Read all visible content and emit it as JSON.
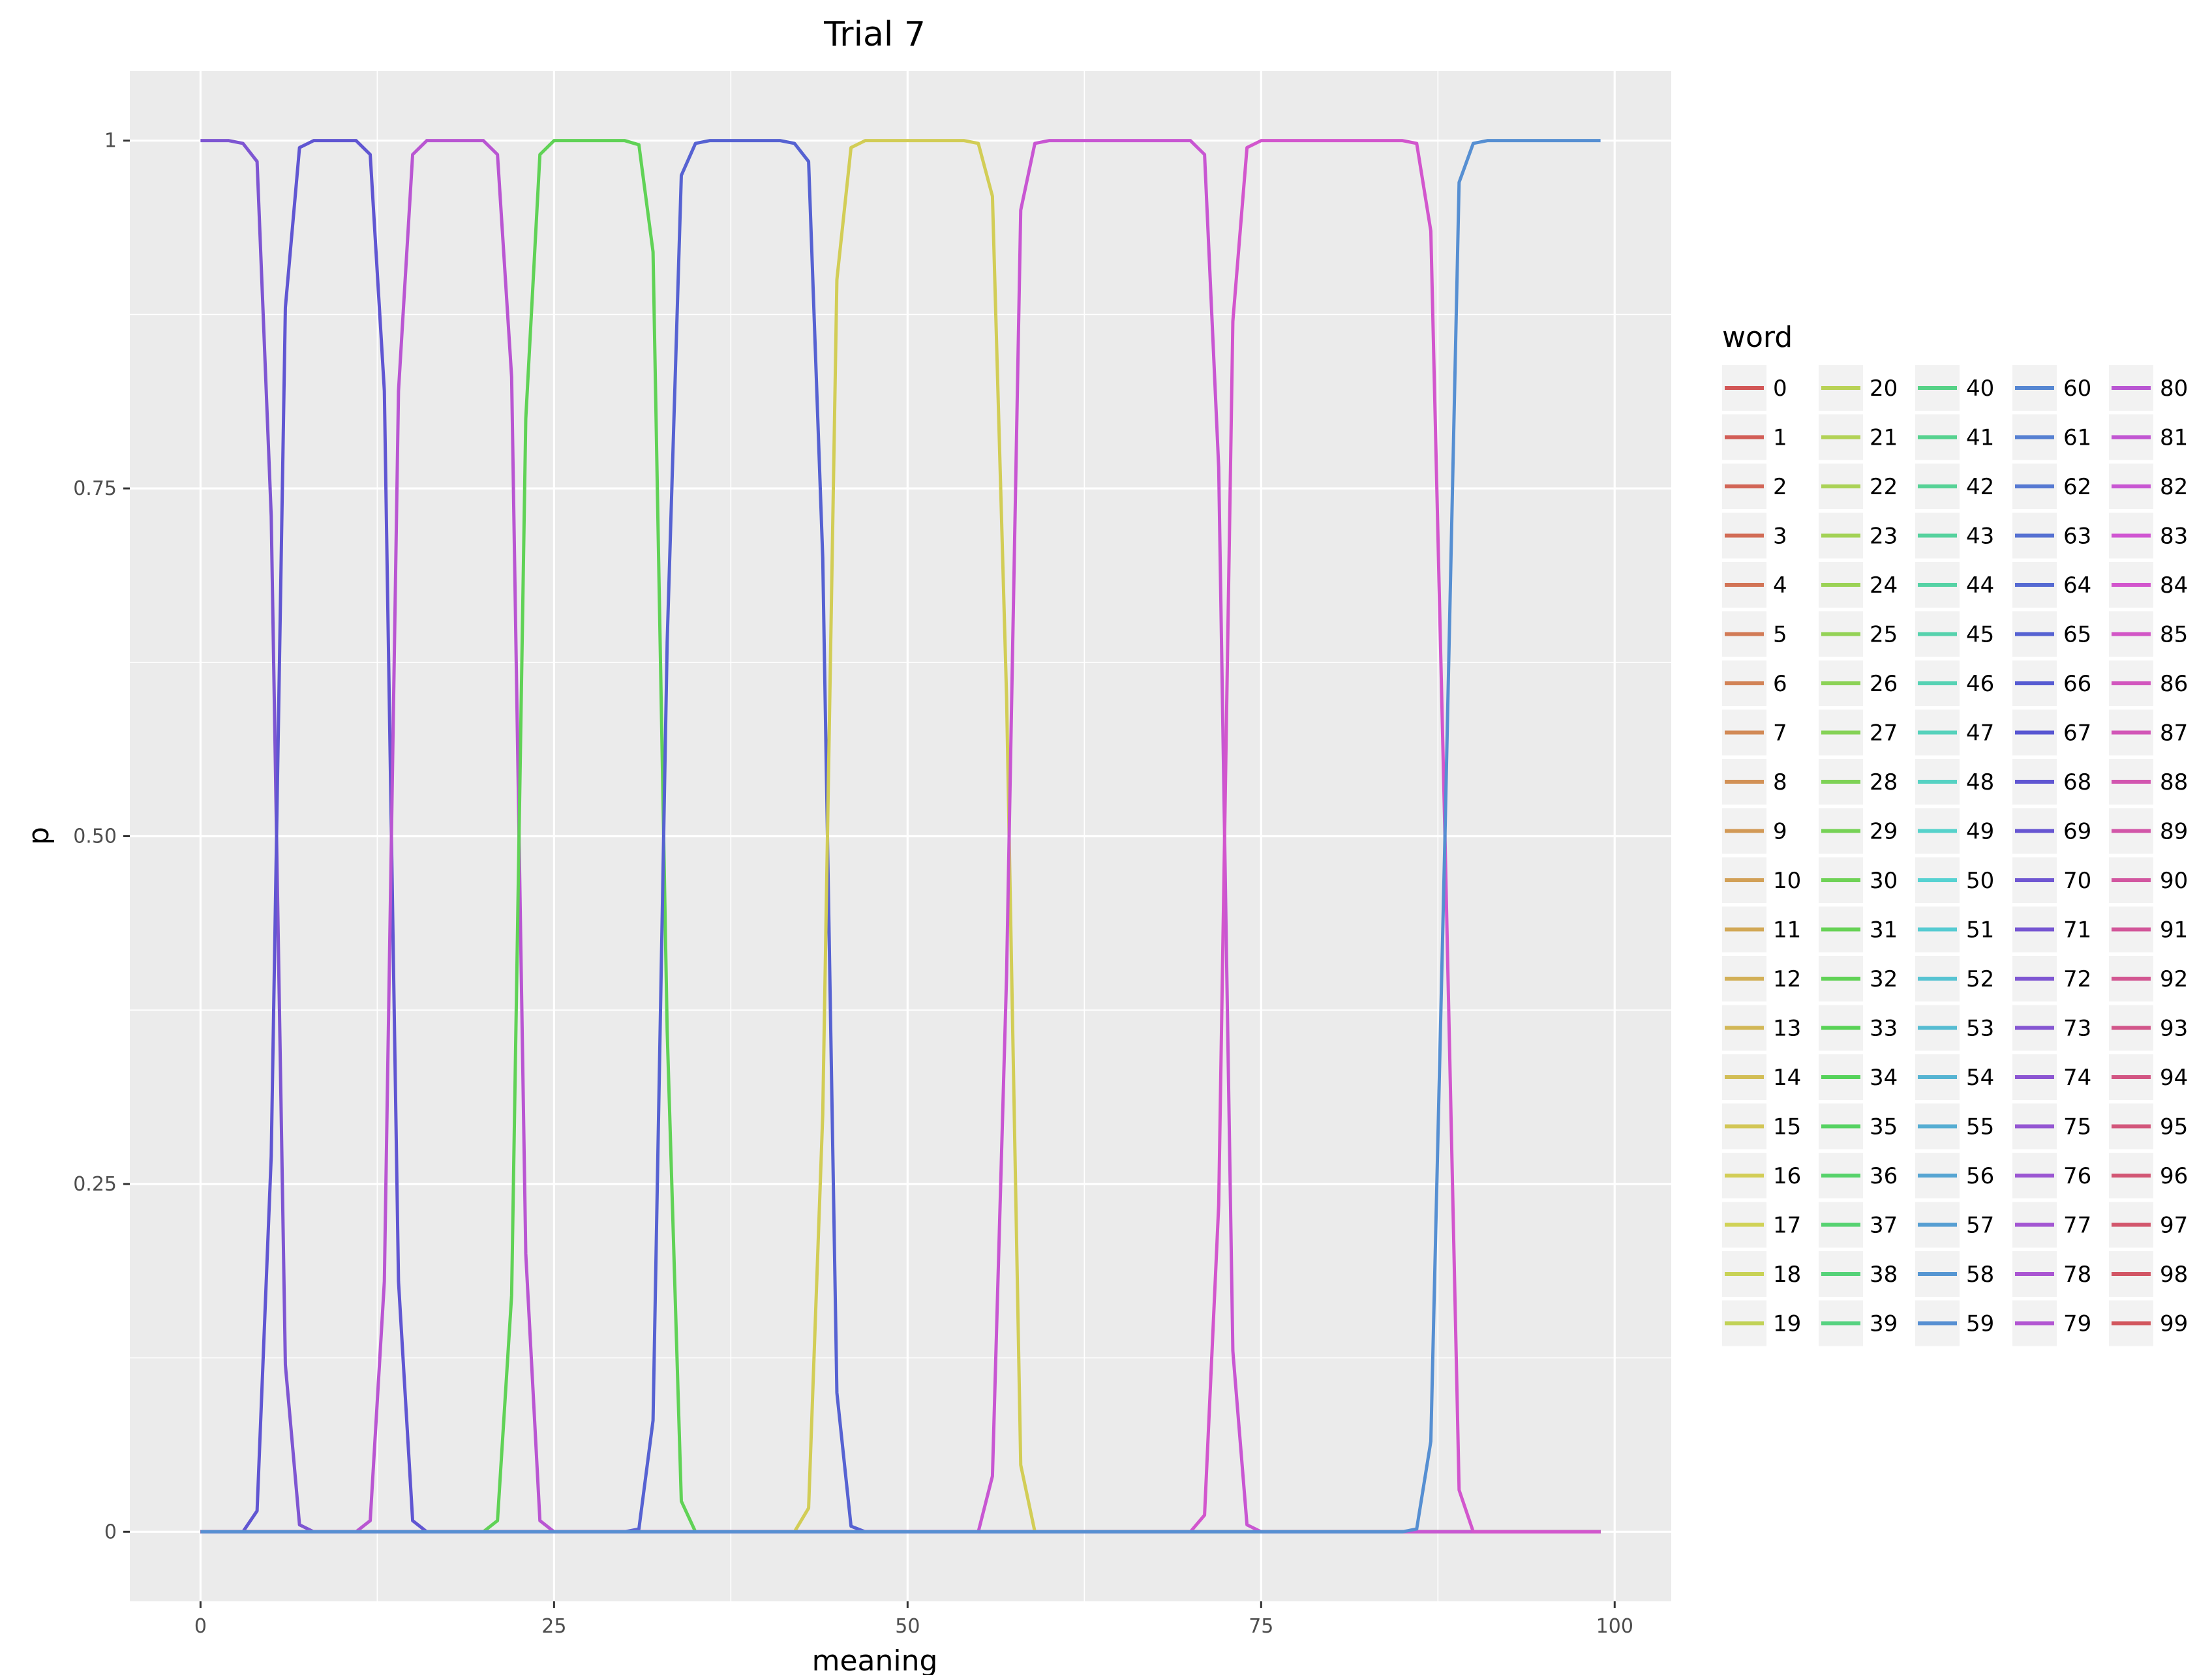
{
  "chart_data": {
    "type": "line",
    "title": "Trial 7",
    "xlabel": "meaning",
    "ylabel": "p",
    "xlim": [
      -5,
      104
    ],
    "ylim": [
      -0.05,
      1.05
    ],
    "x_ticks": [
      0,
      25,
      50,
      75,
      100
    ],
    "x_tick_labels": [
      "0",
      "25",
      "50",
      "75",
      "100"
    ],
    "y_ticks": [
      0,
      0.25,
      0.5,
      0.75,
      1
    ],
    "y_tick_labels": [
      "0",
      "0.25",
      "0.50",
      "0.75",
      "1"
    ],
    "x_minor": [
      12.5,
      37.5,
      62.5,
      87.5
    ],
    "y_minor": [
      0.125,
      0.375,
      0.625,
      0.875
    ],
    "grid": true,
    "legend": {
      "title": "word",
      "placement": "right",
      "columns": 5,
      "labels": [
        "0",
        "1",
        "2",
        "3",
        "4",
        "5",
        "6",
        "7",
        "8",
        "9",
        "10",
        "11",
        "12",
        "13",
        "14",
        "15",
        "16",
        "17",
        "18",
        "19",
        "20",
        "21",
        "22",
        "23",
        "24",
        "25",
        "26",
        "27",
        "28",
        "29",
        "30",
        "31",
        "32",
        "33",
        "34",
        "35",
        "36",
        "37",
        "38",
        "39",
        "40",
        "41",
        "42",
        "43",
        "44",
        "45",
        "46",
        "47",
        "48",
        "49",
        "50",
        "51",
        "52",
        "53",
        "54",
        "55",
        "56",
        "57",
        "58",
        "59",
        "60",
        "61",
        "62",
        "63",
        "64",
        "65",
        "66",
        "67",
        "68",
        "69",
        "70",
        "71",
        "72",
        "73",
        "74",
        "75",
        "76",
        "77",
        "78",
        "79",
        "80",
        "81",
        "82",
        "83",
        "84",
        "85",
        "86",
        "87",
        "88",
        "89",
        "90",
        "91",
        "92",
        "93",
        "94",
        "95",
        "96",
        "97",
        "98",
        "99"
      ]
    },
    "meaning_range": [
      0,
      99
    ],
    "active_series": [
      {
        "word": "72",
        "points": [
          [
            0,
            1
          ],
          [
            1,
            1
          ],
          [
            2,
            1
          ],
          [
            3,
            0.998
          ],
          [
            4,
            0.985
          ],
          [
            5,
            0.73
          ],
          [
            6,
            0.12
          ],
          [
            7,
            0.005
          ],
          [
            8,
            0
          ]
        ]
      },
      {
        "word": "68",
        "points": [
          [
            2,
            0
          ],
          [
            3,
            0
          ],
          [
            4,
            0.015
          ],
          [
            5,
            0.27
          ],
          [
            6,
            0.88
          ],
          [
            7,
            0.995
          ],
          [
            8,
            1
          ],
          [
            9,
            1
          ],
          [
            10,
            1
          ],
          [
            11,
            1
          ],
          [
            12,
            0.99
          ],
          [
            13,
            0.82
          ],
          [
            14,
            0.18
          ],
          [
            15,
            0.008
          ],
          [
            16,
            0
          ]
        ]
      },
      {
        "word": "80",
        "points": [
          [
            10,
            0
          ],
          [
            11,
            0
          ],
          [
            12,
            0.008
          ],
          [
            13,
            0.18
          ],
          [
            14,
            0.82
          ],
          [
            15,
            0.99
          ],
          [
            16,
            1
          ],
          [
            17,
            1
          ],
          [
            18,
            1
          ],
          [
            19,
            1
          ],
          [
            20,
            1
          ],
          [
            21,
            0.99
          ],
          [
            22,
            0.83
          ],
          [
            23,
            0.2
          ],
          [
            24,
            0.008
          ],
          [
            25,
            0
          ]
        ]
      },
      {
        "word": "32",
        "points": [
          [
            19,
            0
          ],
          [
            20,
            0
          ],
          [
            21,
            0.008
          ],
          [
            22,
            0.17
          ],
          [
            23,
            0.8
          ],
          [
            24,
            0.99
          ],
          [
            25,
            1
          ],
          [
            26,
            1
          ],
          [
            27,
            1
          ],
          [
            28,
            1
          ],
          [
            29,
            1
          ],
          [
            30,
            1
          ],
          [
            31,
            0.997
          ],
          [
            32,
            0.92
          ],
          [
            33,
            0.36
          ],
          [
            34,
            0.022
          ],
          [
            35,
            0
          ]
        ]
      },
      {
        "word": "65",
        "points": [
          [
            30,
            0
          ],
          [
            31,
            0.002
          ],
          [
            32,
            0.08
          ],
          [
            33,
            0.64
          ],
          [
            34,
            0.975
          ],
          [
            35,
            0.998
          ],
          [
            36,
            1
          ],
          [
            37,
            1
          ],
          [
            38,
            1
          ],
          [
            39,
            1
          ],
          [
            40,
            1
          ],
          [
            41,
            1
          ],
          [
            42,
            0.998
          ],
          [
            43,
            0.985
          ],
          [
            44,
            0.7
          ],
          [
            45,
            0.1
          ],
          [
            46,
            0.004
          ],
          [
            47,
            0
          ]
        ]
      },
      {
        "word": "16",
        "points": [
          [
            41,
            0
          ],
          [
            42,
            0
          ],
          [
            43,
            0.017
          ],
          [
            44,
            0.3
          ],
          [
            45,
            0.9
          ],
          [
            46,
            0.995
          ],
          [
            47,
            1
          ],
          [
            48,
            1
          ],
          [
            49,
            1
          ],
          [
            50,
            1
          ],
          [
            51,
            1
          ],
          [
            52,
            1
          ],
          [
            53,
            1
          ],
          [
            54,
            1
          ],
          [
            55,
            0.998
          ],
          [
            56,
            0.96
          ],
          [
            57,
            0.6
          ],
          [
            58,
            0.048
          ],
          [
            59,
            0
          ]
        ]
      },
      {
        "word": "82",
        "points": [
          [
            54,
            0
          ],
          [
            55,
            0
          ],
          [
            56,
            0.04
          ],
          [
            57,
            0.4
          ],
          [
            58,
            0.95
          ],
          [
            59,
            0.998
          ],
          [
            60,
            1
          ],
          [
            61,
            1
          ],
          [
            62,
            1
          ],
          [
            63,
            1
          ],
          [
            64,
            1
          ],
          [
            65,
            1
          ],
          [
            66,
            1
          ],
          [
            67,
            1
          ],
          [
            68,
            1
          ],
          [
            69,
            1
          ],
          [
            70,
            1
          ],
          [
            71,
            0.99
          ],
          [
            72,
            0.765
          ],
          [
            73,
            0.13
          ],
          [
            74,
            0.005
          ],
          [
            75,
            0
          ]
        ]
      },
      {
        "word": "84",
        "points": [
          [
            70,
            0
          ],
          [
            71,
            0.012
          ],
          [
            72,
            0.235
          ],
          [
            73,
            0.87
          ],
          [
            74,
            0.995
          ],
          [
            75,
            1
          ],
          [
            76,
            1
          ],
          [
            77,
            1
          ],
          [
            78,
            1
          ],
          [
            79,
            1
          ],
          [
            80,
            1
          ],
          [
            81,
            1
          ],
          [
            82,
            1
          ],
          [
            83,
            1
          ],
          [
            84,
            1
          ],
          [
            85,
            1
          ],
          [
            86,
            0.998
          ],
          [
            87,
            0.935
          ],
          [
            88,
            0.5
          ],
          [
            89,
            0.03
          ],
          [
            90,
            0
          ]
        ]
      },
      {
        "word": "59",
        "points": [
          [
            85,
            0
          ],
          [
            86,
            0.002
          ],
          [
            87,
            0.065
          ],
          [
            88,
            0.5
          ],
          [
            89,
            0.97
          ],
          [
            90,
            0.998
          ],
          [
            91,
            1
          ],
          [
            92,
            1
          ],
          [
            93,
            1
          ],
          [
            94,
            1
          ],
          [
            95,
            1
          ],
          [
            96,
            1
          ],
          [
            97,
            1
          ],
          [
            98,
            1
          ],
          [
            99,
            1
          ]
        ]
      }
    ]
  }
}
